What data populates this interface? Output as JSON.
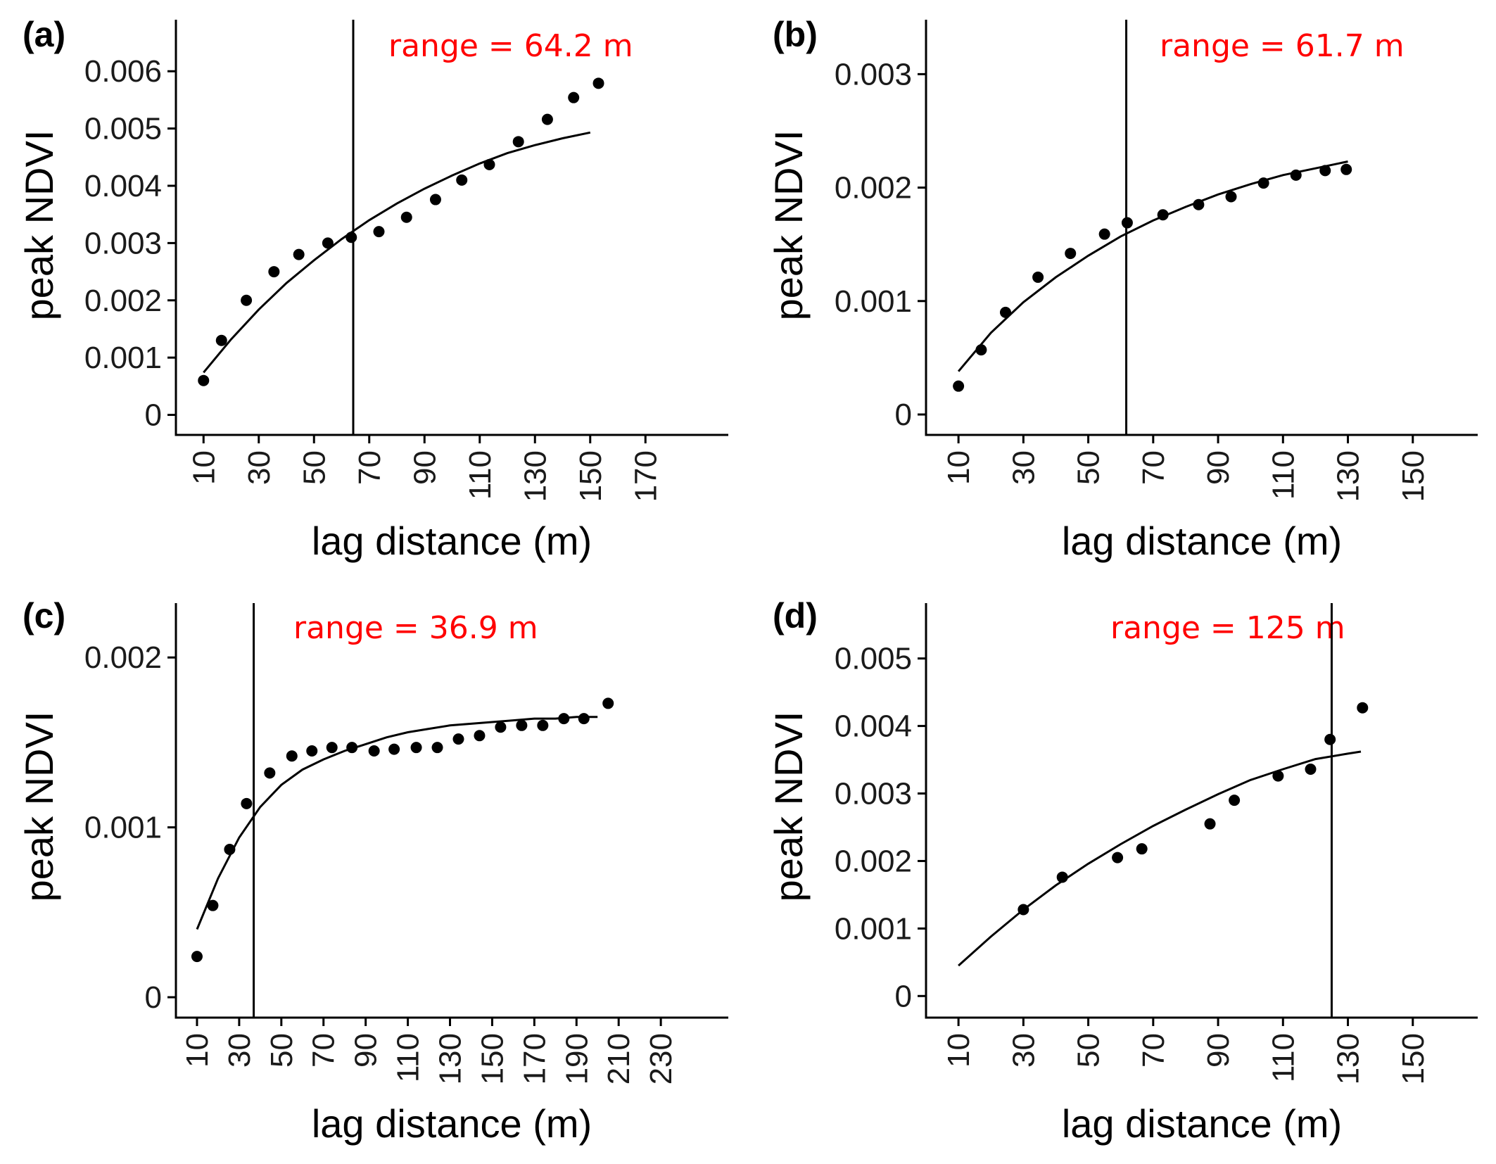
{
  "chart_data": [
    {
      "type": "scatter",
      "panel_label": "(a)",
      "xlabel": "lag distance (m)",
      "ylabel": "peak NDVI",
      "annotation": "range = 64.2 m",
      "annotation_color": "#ff0000",
      "xlim": [
        0,
        200
      ],
      "ylim": [
        -0.00035,
        0.0069
      ],
      "xticks": [
        10,
        30,
        50,
        70,
        90,
        110,
        130,
        150,
        170
      ],
      "xtick_labels": [
        "10",
        "30",
        "50",
        "70",
        "90",
        "110",
        "130",
        "150",
        "170"
      ],
      "yticks": [
        0,
        0.001,
        0.002,
        0.003,
        0.004,
        0.005,
        0.006
      ],
      "ytick_labels": [
        "0",
        "0.001",
        "0.002",
        "0.003",
        "0.004",
        "0.005",
        "0.006"
      ],
      "range_value": 64.2,
      "points": {
        "x": [
          10,
          16.5,
          25.5,
          35.5,
          44.5,
          55,
          63.5,
          73.5,
          83.5,
          94,
          103.5,
          113.5,
          124,
          134.5,
          144,
          153
        ],
        "y": [
          0.0006,
          0.0013,
          0.002,
          0.0025,
          0.0028,
          0.003,
          0.0031,
          0.0032,
          0.00345,
          0.00376,
          0.0041,
          0.00437,
          0.00477,
          0.00516,
          0.00554,
          0.00579
        ]
      },
      "fit": {
        "x": [
          10,
          20,
          30,
          40,
          50,
          60,
          70,
          80,
          90,
          100,
          110,
          120,
          130,
          140,
          150
        ],
        "y": [
          0.00074,
          0.00132,
          0.00184,
          0.0023,
          0.0027,
          0.00307,
          0.0034,
          0.00369,
          0.00395,
          0.00418,
          0.00439,
          0.00457,
          0.00471,
          0.00483,
          0.00493
        ]
      }
    },
    {
      "type": "scatter",
      "panel_label": "(b)",
      "xlabel": "lag distance (m)",
      "ylabel": "peak NDVI",
      "annotation": "range = 61.7 m",
      "annotation_color": "#ff0000",
      "xlim": [
        0,
        170
      ],
      "ylim": [
        -0.00018,
        0.00348
      ],
      "xticks": [
        10,
        30,
        50,
        70,
        90,
        110,
        130,
        150
      ],
      "xtick_labels": [
        "10",
        "30",
        "50",
        "70",
        "90",
        "110",
        "130",
        "150"
      ],
      "yticks": [
        0,
        0.001,
        0.002,
        0.003
      ],
      "ytick_labels": [
        "0",
        "0.001",
        "0.002",
        "0.003"
      ],
      "range_value": 61.7,
      "points": {
        "x": [
          10,
          17,
          24.5,
          34.5,
          44.5,
          55,
          62,
          73,
          84,
          94,
          104,
          114,
          123,
          129.5
        ],
        "y": [
          0.00025,
          0.00057,
          0.0009,
          0.00121,
          0.00142,
          0.00159,
          0.00169,
          0.00176,
          0.00185,
          0.00192,
          0.00204,
          0.00211,
          0.00215,
          0.00216
        ]
      },
      "fit": {
        "x": [
          10,
          20,
          30,
          40,
          50,
          60,
          70,
          80,
          90,
          100,
          110,
          120,
          130
        ],
        "y": [
          0.00038,
          0.00072,
          0.00099,
          0.00121,
          0.0014,
          0.00157,
          0.00171,
          0.00183,
          0.00194,
          0.00203,
          0.00211,
          0.00217,
          0.00223
        ]
      }
    },
    {
      "type": "scatter",
      "panel_label": "(c)",
      "xlabel": "lag distance (m)",
      "ylabel": "peak NDVI",
      "annotation": "range = 36.9 m",
      "annotation_color": "#ff0000",
      "xlim": [
        0,
        262
      ],
      "ylim": [
        -0.00012,
        0.00232
      ],
      "xticks": [
        10,
        30,
        50,
        70,
        90,
        110,
        130,
        150,
        170,
        190,
        210,
        230
      ],
      "xtick_labels": [
        "10",
        "30",
        "50",
        "70",
        "90",
        "110",
        "130",
        "150",
        "170",
        "190",
        "210",
        "230"
      ],
      "yticks": [
        0,
        0.001,
        0.002
      ],
      "ytick_labels": [
        "0",
        "0.001",
        "0.002"
      ],
      "range_value": 36.9,
      "points": {
        "x": [
          10,
          17.5,
          25.5,
          33.5,
          44.5,
          55,
          64.5,
          74,
          83.5,
          94,
          103.5,
          114,
          124,
          134,
          144,
          154,
          164,
          174,
          184,
          193.5,
          205
        ],
        "y": [
          0.00024,
          0.00054,
          0.00087,
          0.00114,
          0.00132,
          0.00142,
          0.00145,
          0.00147,
          0.00147,
          0.00145,
          0.00146,
          0.00147,
          0.00147,
          0.00152,
          0.00154,
          0.00159,
          0.0016,
          0.0016,
          0.00164,
          0.00164,
          0.00173
        ]
      },
      "fit": {
        "x": [
          10,
          20,
          30,
          40,
          50,
          60,
          70,
          80,
          90,
          100,
          110,
          120,
          130,
          140,
          150,
          160,
          170,
          180,
          190,
          200
        ],
        "y": [
          0.0004,
          0.0007,
          0.00094,
          0.00112,
          0.00125,
          0.00134,
          0.0014,
          0.00145,
          0.00149,
          0.00153,
          0.00156,
          0.00158,
          0.0016,
          0.00161,
          0.00162,
          0.00163,
          0.00164,
          0.00164,
          0.00165,
          0.00165
        ]
      }
    },
    {
      "type": "scatter",
      "panel_label": "(d)",
      "xlabel": "lag distance (m)",
      "ylabel": "peak NDVI",
      "annotation": "range = 125 m",
      "annotation_color": "#ff0000",
      "xlim": [
        0,
        170
      ],
      "ylim": [
        -0.00032,
        0.00582
      ],
      "xticks": [
        10,
        30,
        50,
        70,
        90,
        110,
        130,
        150
      ],
      "xtick_labels": [
        "10",
        "30",
        "50",
        "70",
        "90",
        "110",
        "130",
        "150"
      ],
      "yticks": [
        0,
        0.001,
        0.002,
        0.003,
        0.004,
        0.005
      ],
      "ytick_labels": [
        "0",
        "0.001",
        "0.002",
        "0.003",
        "0.004",
        "0.005"
      ],
      "range_value": 125,
      "points": {
        "x": [
          30,
          42,
          59,
          66.5,
          87.5,
          95,
          108.5,
          118.5,
          124.5,
          134.5
        ],
        "y": [
          0.00128,
          0.00176,
          0.00205,
          0.00218,
          0.00255,
          0.0029,
          0.00326,
          0.00336,
          0.0038,
          0.00427
        ]
      },
      "fit": {
        "x": [
          10,
          20,
          30,
          40,
          50,
          60,
          70,
          80,
          90,
          100,
          110,
          120,
          130,
          134
        ],
        "y": [
          0.00045,
          0.00088,
          0.00128,
          0.00164,
          0.00196,
          0.00225,
          0.00252,
          0.00276,
          0.00299,
          0.0032,
          0.00336,
          0.00351,
          0.00359,
          0.00362
        ]
      }
    }
  ]
}
